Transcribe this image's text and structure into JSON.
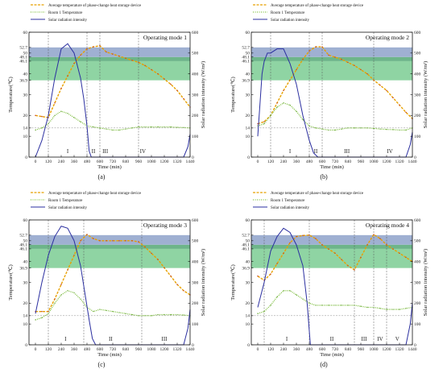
{
  "legend": {
    "device": "Average temperature of phase-change heat storage device",
    "room": "Room 1 Temperature",
    "solar": "Solar radiation intensity"
  },
  "colors": {
    "device_dash": "#e8a100",
    "device_dot": "#c0392b",
    "room": "#7fbf3f",
    "solar": "#2b2fa0",
    "band_blue": "#9fb0d2",
    "band_green": "#8fd4a3",
    "band_dark": "#6db58a"
  },
  "chart_data": [
    {
      "type": "line",
      "title": "Operating mode 1",
      "sub": "(a)",
      "xlabel": "Time (min)",
      "ylabel": "Temperature(℃)",
      "y2label": "Solar radiation intensity (W/m²)",
      "xlim": [
        -60,
        1440
      ],
      "ylim": [
        0,
        60
      ],
      "y2lim": [
        0,
        600
      ],
      "xticks": [
        0,
        120,
        240,
        360,
        480,
        600,
        720,
        840,
        960,
        1080,
        1200,
        1320,
        1440
      ],
      "yticks_left": [
        0,
        10,
        14,
        20,
        30,
        36.9,
        40,
        46.1,
        48.1,
        50,
        52.7,
        60
      ],
      "yticks_right": [
        0,
        100,
        200,
        300,
        400,
        500,
        600
      ],
      "bands": [
        [
          36.9,
          46.1,
          "green"
        ],
        [
          46.1,
          48.1,
          "dark"
        ],
        [
          48.1,
          52.7,
          "blue"
        ]
      ],
      "hlines": [
        14
      ],
      "vlines": [
        120,
        480,
        600,
        960
      ],
      "phases": [
        {
          "x": 300,
          "label": "I"
        },
        {
          "x": 540,
          "label": "II"
        },
        {
          "x": 650,
          "label": "III"
        },
        {
          "x": 1000,
          "label": "IV"
        }
      ],
      "series": [
        {
          "key": "device",
          "x": [
            0,
            60,
            120,
            180,
            240,
            300,
            360,
            420,
            480,
            540,
            600,
            660,
            720,
            780,
            840,
            900,
            960,
            1020,
            1080,
            1140,
            1200,
            1260,
            1320,
            1380,
            1440
          ],
          "values": [
            20,
            19.5,
            19,
            26,
            33,
            39,
            45,
            49,
            52,
            53,
            53.5,
            50.5,
            49.5,
            48.5,
            47.5,
            46.5,
            45.5,
            44,
            42,
            40,
            37.5,
            35,
            32,
            28,
            24
          ]
        },
        {
          "key": "room",
          "x": [
            0,
            60,
            120,
            180,
            240,
            300,
            360,
            420,
            480,
            540,
            600,
            660,
            720,
            780,
            840,
            900,
            960,
            1020,
            1080,
            1140,
            1200,
            1260,
            1320,
            1380,
            1440
          ],
          "values": [
            13,
            14,
            16,
            20,
            22,
            21,
            19,
            17,
            15,
            14.5,
            14,
            13.5,
            13,
            13,
            13.5,
            14,
            14.5,
            14.5,
            14.5,
            14.5,
            14.5,
            14.5,
            14.3,
            14.2,
            14
          ]
        },
        {
          "key": "solar",
          "x": [
            0,
            60,
            120,
            180,
            240,
            300,
            360,
            420,
            450,
            480,
            500,
            520,
            1380,
            1420,
            1440
          ],
          "values": [
            0,
            80,
            200,
            380,
            520,
            545,
            500,
            380,
            280,
            150,
            30,
            0,
            0,
            50,
            110
          ]
        }
      ]
    },
    {
      "type": "line",
      "title": "Operating mode 2",
      "sub": "(b)",
      "xlabel": "Time (min)",
      "ylabel": "Temperature(℃)",
      "y2label": "Solar radiation intensity (W/m²)",
      "xlim": [
        -60,
        1440
      ],
      "ylim": [
        0,
        60
      ],
      "y2lim": [
        0,
        600
      ],
      "xticks": [
        0,
        120,
        240,
        360,
        480,
        600,
        720,
        840,
        960,
        1080,
        1200,
        1320,
        1440
      ],
      "yticks_left": [
        0,
        10,
        14,
        20,
        30,
        36.9,
        40,
        46.1,
        48.1,
        50,
        52.7,
        60
      ],
      "yticks_right": [
        0,
        100,
        200,
        300,
        400,
        500,
        600
      ],
      "bands": [
        [
          36.9,
          46.1,
          "green"
        ],
        [
          46.1,
          48.1,
          "dark"
        ],
        [
          48.1,
          52.7,
          "blue"
        ]
      ],
      "hlines": [
        14
      ],
      "vlines": [
        120,
        480,
        600,
        1080
      ],
      "phases": [
        {
          "x": 300,
          "label": "I"
        },
        {
          "x": 540,
          "label": "II"
        },
        {
          "x": 830,
          "label": "III"
        },
        {
          "x": 1230,
          "label": "IV"
        }
      ],
      "series": [
        {
          "key": "device",
          "x": [
            0,
            60,
            120,
            180,
            240,
            300,
            360,
            420,
            480,
            540,
            600,
            660,
            720,
            780,
            840,
            900,
            960,
            1020,
            1080,
            1140,
            1200,
            1260,
            1320,
            1380,
            1440
          ],
          "values": [
            16,
            17,
            20,
            26,
            32,
            37,
            42,
            47,
            51,
            53,
            53,
            49,
            48,
            47,
            45.5,
            44,
            42,
            40,
            37,
            34.5,
            32,
            28.5,
            25,
            21.5,
            18.5
          ]
        },
        {
          "key": "room",
          "x": [
            0,
            60,
            120,
            180,
            240,
            300,
            360,
            420,
            480,
            540,
            600,
            660,
            720,
            780,
            840,
            900,
            960,
            1020,
            1080,
            1140,
            1200,
            1260,
            1320,
            1380,
            1440
          ],
          "values": [
            15,
            16,
            20,
            24,
            26,
            25,
            22,
            18,
            15,
            14,
            13.5,
            13,
            13,
            13.5,
            14,
            14,
            14,
            14,
            13.8,
            13.5,
            13.3,
            13.2,
            13,
            13,
            14
          ]
        },
        {
          "key": "solar",
          "x": [
            0,
            20,
            40,
            60,
            90,
            120,
            180,
            240,
            300,
            360,
            420,
            480,
            520,
            560,
            1380,
            1420,
            1440
          ],
          "values": [
            100,
            250,
            400,
            460,
            500,
            500,
            520,
            520,
            450,
            350,
            200,
            80,
            20,
            0,
            0,
            60,
            120
          ]
        }
      ]
    },
    {
      "type": "line",
      "title": "Operating mode 3",
      "sub": "(c)",
      "xlabel": "Time (min)",
      "ylabel": "Temperature(℃)",
      "y2label": "Solar radiation intensity (W/m²)",
      "xlim": [
        -60,
        1440
      ],
      "ylim": [
        0,
        60
      ],
      "y2lim": [
        0,
        600
      ],
      "xticks": [
        0,
        120,
        240,
        360,
        480,
        600,
        720,
        840,
        960,
        1080,
        1200,
        1320,
        1440
      ],
      "yticks_left": [
        0,
        10,
        14,
        20,
        30,
        36.9,
        40,
        46.1,
        48.1,
        50,
        52.7,
        60
      ],
      "yticks_right": [
        0,
        100,
        200,
        300,
        400,
        500,
        600
      ],
      "bands": [
        [
          36.9,
          46.1,
          "green"
        ],
        [
          46.1,
          48.1,
          "dark"
        ],
        [
          48.1,
          52.7,
          "blue"
        ]
      ],
      "hlines": [
        14
      ],
      "vlines": [
        120,
        450,
        990
      ],
      "phases": [
        {
          "x": 280,
          "label": "I"
        },
        {
          "x": 700,
          "label": "II"
        },
        {
          "x": 1200,
          "label": "III"
        }
      ],
      "series": [
        {
          "key": "device",
          "x": [
            0,
            60,
            120,
            180,
            240,
            300,
            360,
            420,
            480,
            540,
            600,
            660,
            720,
            780,
            840,
            900,
            960,
            1020,
            1080,
            1140,
            1200,
            1260,
            1320,
            1380,
            1440
          ],
          "values": [
            16,
            16,
            16,
            22,
            29,
            36,
            43,
            50,
            53,
            51,
            50,
            50,
            50,
            50,
            50,
            50,
            49.5,
            47,
            44,
            41,
            37,
            33,
            29,
            26,
            24
          ]
        },
        {
          "key": "room",
          "x": [
            0,
            60,
            120,
            180,
            240,
            300,
            360,
            420,
            480,
            540,
            600,
            660,
            720,
            780,
            840,
            900,
            960,
            1020,
            1080,
            1140,
            1200,
            1260,
            1320,
            1380,
            1440
          ],
          "values": [
            12,
            13,
            15,
            20,
            24,
            26,
            25,
            22,
            18,
            16,
            17,
            16.5,
            16,
            15.5,
            15,
            14.5,
            14,
            14,
            14,
            14.5,
            14.5,
            14.5,
            14.5,
            14.3,
            14
          ]
        },
        {
          "key": "solar",
          "x": [
            0,
            60,
            120,
            180,
            240,
            300,
            360,
            420,
            460,
            500,
            530,
            560,
            1380,
            1420,
            1440
          ],
          "values": [
            150,
            300,
            430,
            520,
            570,
            560,
            500,
            380,
            250,
            120,
            30,
            0,
            0,
            80,
            170
          ]
        }
      ]
    },
    {
      "type": "line",
      "title": "Operating mode 4",
      "sub": "(d)",
      "xlabel": "Time (min)",
      "ylabel": "Temperature(℃)",
      "y2label": "Solar radiation intensity (W/m²)",
      "xlim": [
        -60,
        1440
      ],
      "ylim": [
        0,
        60
      ],
      "y2lim": [
        0,
        600
      ],
      "xticks": [
        0,
        120,
        240,
        360,
        480,
        600,
        720,
        840,
        960,
        1080,
        1200,
        1320,
        1440
      ],
      "yticks_left": [
        0,
        10,
        14,
        20,
        30,
        36.9,
        40,
        46.1,
        48.1,
        50,
        52.7,
        60
      ],
      "yticks_right": [
        0,
        100,
        200,
        300,
        400,
        500,
        600
      ],
      "bands": [
        [
          36.9,
          46.1,
          "green"
        ],
        [
          46.1,
          48.1,
          "dark"
        ],
        [
          48.1,
          52.7,
          "blue"
        ]
      ],
      "hlines": [
        14
      ],
      "vlines": [
        60,
        480,
        900,
        1080,
        1200
      ],
      "phases": [
        {
          "x": 270,
          "label": "I"
        },
        {
          "x": 690,
          "label": "II"
        },
        {
          "x": 990,
          "label": "III"
        },
        {
          "x": 1140,
          "label": "IV"
        },
        {
          "x": 1300,
          "label": "V"
        }
      ],
      "series": [
        {
          "key": "device",
          "x": [
            0,
            60,
            120,
            180,
            240,
            300,
            360,
            420,
            480,
            540,
            600,
            660,
            720,
            780,
            840,
            900,
            960,
            1020,
            1080,
            1140,
            1200,
            1260,
            1320,
            1380,
            1440
          ],
          "values": [
            33,
            31,
            34,
            39,
            44,
            49,
            52,
            52.5,
            52.7,
            51,
            48,
            46,
            44,
            41,
            38,
            36,
            42,
            48,
            53,
            51,
            48,
            46,
            44,
            42,
            40
          ]
        },
        {
          "key": "room",
          "x": [
            0,
            60,
            120,
            180,
            240,
            300,
            360,
            420,
            480,
            540,
            600,
            660,
            720,
            780,
            840,
            900,
            960,
            1020,
            1080,
            1140,
            1200,
            1260,
            1320,
            1380,
            1440
          ],
          "values": [
            15,
            16,
            19,
            23,
            26,
            26,
            24,
            22,
            20,
            19,
            19,
            19,
            19,
            19,
            19,
            19,
            18.5,
            18,
            18,
            17.5,
            17,
            17,
            17,
            17.5,
            18
          ]
        },
        {
          "key": "solar",
          "x": [
            0,
            60,
            120,
            180,
            240,
            300,
            360,
            420,
            460,
            490,
            1380,
            1420,
            1440
          ],
          "values": [
            180,
            300,
            450,
            520,
            560,
            540,
            480,
            380,
            200,
            0,
            0,
            100,
            200
          ]
        }
      ]
    }
  ]
}
